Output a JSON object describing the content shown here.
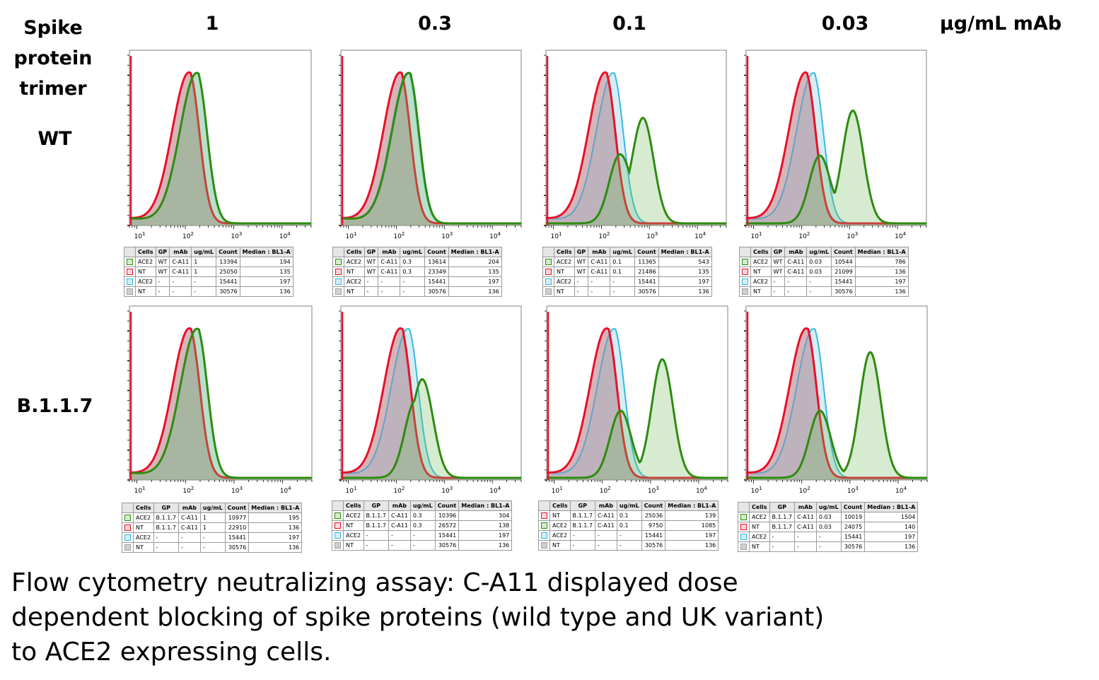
{
  "headers": {
    "row_title": [
      "Spike",
      "protein",
      "trimer"
    ],
    "concentrations": [
      "1",
      "0.3",
      "0.1",
      "0.03"
    ],
    "unit": "µg/mL mAb"
  },
  "row_labels": [
    "WT",
    "B.1.1.7"
  ],
  "caption": [
    "Flow cytometry neutralizing assay: C-A11 displayed dose",
    "dependent blocking of spike proteins (wild type and UK variant)",
    "to ACE2 expressing cells."
  ],
  "colors": {
    "ACE2_mab": "#2e8b10",
    "NT_mab": "#e8102a",
    "ACE2_ctrl": "#38b8e0",
    "NT_ctrl": "#a0a0a0"
  },
  "table_headers": [
    "Cells",
    "GP",
    "mAb",
    "ug/mL",
    "Count",
    "Median : BL1-A"
  ],
  "chart_data": [
    {
      "type": "area",
      "row": "WT",
      "conc": "1",
      "xscale": "log",
      "xlim": [
        7,
        40000
      ],
      "xticks": [
        "10^1",
        "10^2",
        "10^3",
        "10^4"
      ],
      "legend": [
        {
          "color": "ACE2_mab",
          "cells": "ACE2",
          "gp": "WT",
          "mab": "C-A11",
          "ugml": "1",
          "count": "13394",
          "median": "194"
        },
        {
          "color": "NT_mab",
          "cells": "NT",
          "gp": "WT",
          "mab": "C-A11",
          "ugml": "1",
          "count": "25050",
          "median": "135"
        },
        {
          "color": "ACE2_ctrl",
          "cells": "ACE2",
          "gp": "-",
          "mab": "-",
          "ugml": "-",
          "count": "15441",
          "median": "197"
        },
        {
          "color": "NT_ctrl",
          "cells": "NT",
          "gp": "-",
          "mab": "-",
          "ugml": "-",
          "count": "30576",
          "median": "136"
        }
      ]
    },
    {
      "type": "area",
      "row": "WT",
      "conc": "0.3",
      "xscale": "log",
      "xlim": [
        7,
        40000
      ],
      "xticks": [
        "10^1",
        "10^2",
        "10^3",
        "10^4"
      ],
      "legend": [
        {
          "color": "ACE2_mab",
          "cells": "ACE2",
          "gp": "WT",
          "mab": "C-A11",
          "ugml": "0.3",
          "count": "13614",
          "median": "204"
        },
        {
          "color": "NT_mab",
          "cells": "NT",
          "gp": "WT",
          "mab": "C-A11",
          "ugml": "0.3",
          "count": "23349",
          "median": "135"
        },
        {
          "color": "ACE2_ctrl",
          "cells": "ACE2",
          "gp": "-",
          "mab": "-",
          "ugml": "-",
          "count": "15441",
          "median": "197"
        },
        {
          "color": "NT_ctrl",
          "cells": "NT",
          "gp": "-",
          "mab": "-",
          "ugml": "-",
          "count": "30576",
          "median": "136"
        }
      ]
    },
    {
      "type": "area",
      "row": "WT",
      "conc": "0.1",
      "xscale": "log",
      "xlim": [
        7,
        40000
      ],
      "xticks": [
        "10^1",
        "10^2",
        "10^3",
        "10^4"
      ],
      "legend": [
        {
          "color": "ACE2_mab",
          "cells": "ACE2",
          "gp": "WT",
          "mab": "C-A11",
          "ugml": "0.1",
          "count": "11365",
          "median": "543"
        },
        {
          "color": "NT_mab",
          "cells": "NT",
          "gp": "WT",
          "mab": "C-A11",
          "ugml": "0.1",
          "count": "21486",
          "median": "135"
        },
        {
          "color": "ACE2_ctrl",
          "cells": "ACE2",
          "gp": "-",
          "mab": "-",
          "ugml": "-",
          "count": "15441",
          "median": "197"
        },
        {
          "color": "NT_ctrl",
          "cells": "NT",
          "gp": "-",
          "mab": "-",
          "ugml": "-",
          "count": "30576",
          "median": "136"
        }
      ]
    },
    {
      "type": "area",
      "row": "WT",
      "conc": "0.03",
      "xscale": "log",
      "xlim": [
        7,
        40000
      ],
      "xticks": [
        "10^1",
        "10^2",
        "10^3",
        "10^4"
      ],
      "legend": [
        {
          "color": "ACE2_mab",
          "cells": "ACE2",
          "gp": "WT",
          "mab": "C-A11",
          "ugml": "0.03",
          "count": "10544",
          "median": "786"
        },
        {
          "color": "NT_mab",
          "cells": "NT",
          "gp": "WT",
          "mab": "C-A11",
          "ugml": "0.03",
          "count": "21099",
          "median": "136"
        },
        {
          "color": "ACE2_ctrl",
          "cells": "ACE2",
          "gp": "-",
          "mab": "-",
          "ugml": "-",
          "count": "15441",
          "median": "197"
        },
        {
          "color": "NT_ctrl",
          "cells": "NT",
          "gp": "-",
          "mab": "-",
          "ugml": "-",
          "count": "30576",
          "median": "136"
        }
      ]
    },
    {
      "type": "area",
      "row": "B.1.1.7",
      "conc": "1",
      "xscale": "log",
      "xlim": [
        7,
        40000
      ],
      "xticks": [
        "10^1",
        "10^2",
        "10^3",
        "10^4"
      ],
      "legend": [
        {
          "color": "ACE2_mab",
          "cells": "ACE2",
          "gp": "B.1.1.7",
          "mab": "C-A11",
          "ugml": "1",
          "count": "10977",
          "median": "195"
        },
        {
          "color": "NT_mab",
          "cells": "NT",
          "gp": "B.1.1.7",
          "mab": "C-A11",
          "ugml": "1",
          "count": "22910",
          "median": "136"
        },
        {
          "color": "ACE2_ctrl",
          "cells": "ACE2",
          "gp": "-",
          "mab": "-",
          "ugml": "-",
          "count": "15441",
          "median": "197"
        },
        {
          "color": "NT_ctrl",
          "cells": "NT",
          "gp": "-",
          "mab": "-",
          "ugml": "-",
          "count": "30576",
          "median": "136"
        }
      ]
    },
    {
      "type": "area",
      "row": "B.1.1.7",
      "conc": "0.3",
      "xscale": "log",
      "xlim": [
        7,
        40000
      ],
      "xticks": [
        "10^1",
        "10^2",
        "10^3",
        "10^4"
      ],
      "legend": [
        {
          "color": "ACE2_mab",
          "cells": "ACE2",
          "gp": "B.1.1.7",
          "mab": "C-A11",
          "ugml": "0.3",
          "count": "10396",
          "median": "304"
        },
        {
          "color": "NT_mab",
          "cells": "NT",
          "gp": "B.1.1.7",
          "mab": "C-A11",
          "ugml": "0.3",
          "count": "26572",
          "median": "138"
        },
        {
          "color": "ACE2_ctrl",
          "cells": "ACE2",
          "gp": "-",
          "mab": "-",
          "ugml": "-",
          "count": "15441",
          "median": "197"
        },
        {
          "color": "NT_ctrl",
          "cells": "NT",
          "gp": "-",
          "mab": "-",
          "ugml": "-",
          "count": "30576",
          "median": "136"
        }
      ]
    },
    {
      "type": "area",
      "row": "B.1.1.7",
      "conc": "0.1",
      "xscale": "log",
      "xlim": [
        7,
        40000
      ],
      "xticks": [
        "10^1",
        "10^2",
        "10^3",
        "10^4"
      ],
      "legend": [
        {
          "color": "NT_mab",
          "cells": "NT",
          "gp": "B.1.1.7",
          "mab": "C-A11",
          "ugml": "0.1",
          "count": "25036",
          "median": "139"
        },
        {
          "color": "ACE2_mab",
          "cells": "ACE2",
          "gp": "B.1.1.7",
          "mab": "C-A11",
          "ugml": "0.1",
          "count": "9750",
          "median": "1085"
        },
        {
          "color": "ACE2_ctrl",
          "cells": "ACE2",
          "gp": "-",
          "mab": "-",
          "ugml": "-",
          "count": "15441",
          "median": "197"
        },
        {
          "color": "NT_ctrl",
          "cells": "NT",
          "gp": "-",
          "mab": "-",
          "ugml": "-",
          "count": "30576",
          "median": "136"
        }
      ]
    },
    {
      "type": "area",
      "row": "B.1.1.7",
      "conc": "0.03",
      "xscale": "log",
      "xlim": [
        7,
        40000
      ],
      "xticks": [
        "10^1",
        "10^2",
        "10^3",
        "10^4"
      ],
      "legend": [
        {
          "color": "ACE2_mab",
          "cells": "ACE2",
          "gp": "B.1.1.7",
          "mab": "C-A11",
          "ugml": "0.03",
          "count": "10019",
          "median": "1504"
        },
        {
          "color": "NT_mab",
          "cells": "NT",
          "gp": "B.1.1.7",
          "mab": "C-A11",
          "ugml": "0.03",
          "count": "24075",
          "median": "140"
        },
        {
          "color": "ACE2_ctrl",
          "cells": "ACE2",
          "gp": "-",
          "mab": "-",
          "ugml": "-",
          "count": "15441",
          "median": "197"
        },
        {
          "color": "NT_ctrl",
          "cells": "NT",
          "gp": "-",
          "mab": "-",
          "ugml": "-",
          "count": "30576",
          "median": "136"
        }
      ]
    }
  ]
}
